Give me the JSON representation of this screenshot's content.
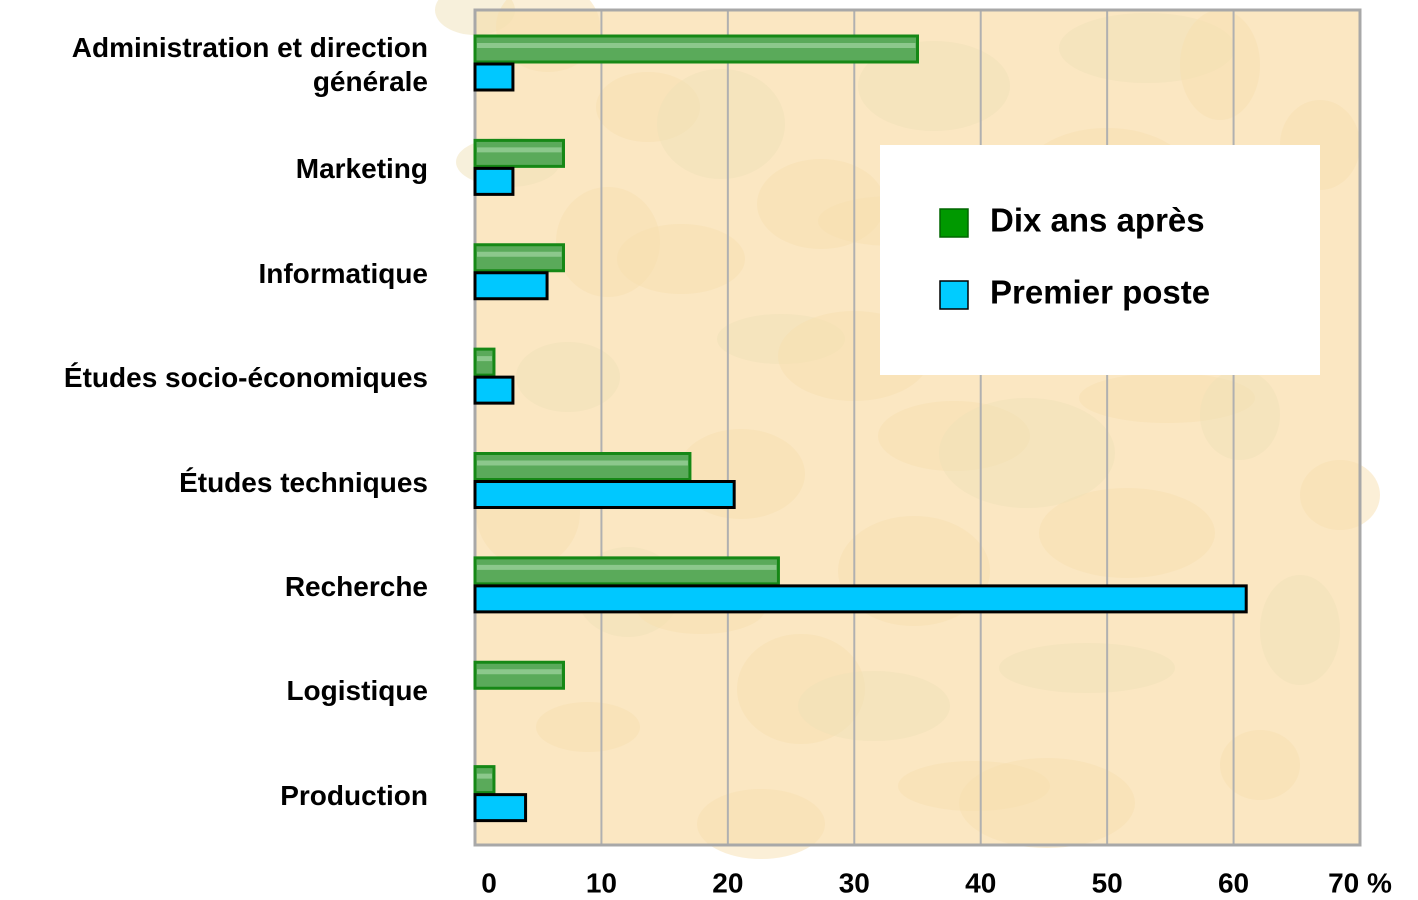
{
  "chart_data": {
    "type": "hbar",
    "categories": [
      "Administration et direction générale",
      "Marketing",
      "Informatique",
      "Études socio-économiques",
      "Études techniques",
      "Recherche",
      "Logistique",
      "Production"
    ],
    "series": [
      {
        "name": "Dix ans après",
        "color": "#009900",
        "values": [
          35,
          7,
          7,
          1.5,
          17,
          24,
          7,
          1.5
        ]
      },
      {
        "name": "Premier poste",
        "color": "#00ccff",
        "values": [
          3,
          3,
          5.7,
          3,
          20.5,
          61,
          0,
          4
        ]
      }
    ],
    "xlim": [
      0,
      70
    ],
    "xticks": [
      0,
      10,
      20,
      30,
      40,
      50,
      60,
      {
        "value": 70,
        "label": "70 %"
      }
    ],
    "grid": true,
    "legend": "upper right"
  }
}
